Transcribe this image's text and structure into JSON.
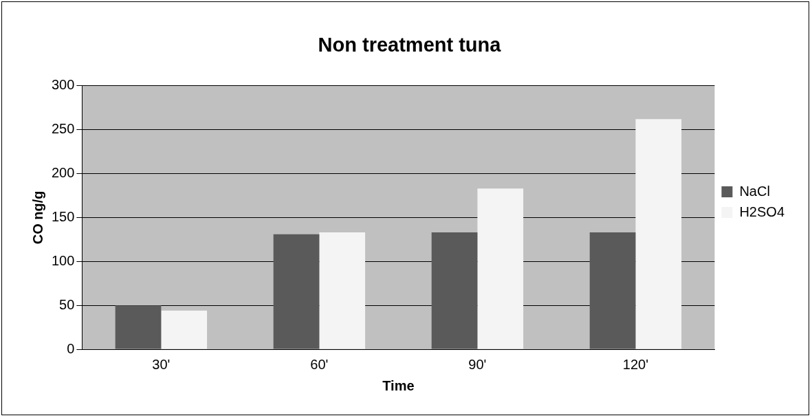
{
  "chart_data": {
    "type": "bar",
    "title": "Non treatment tuna",
    "xlabel": "Time",
    "ylabel": "CO ng/g",
    "categories": [
      "30'",
      "60'",
      "90'",
      "120'"
    ],
    "series": [
      {
        "name": "NaCl",
        "color": "#5a5a5a",
        "values": [
          50,
          131,
          133,
          133
        ]
      },
      {
        "name": "H2SO4",
        "color": "#f4f4f4",
        "values": [
          44,
          133,
          183,
          262
        ]
      }
    ],
    "ylim": [
      0,
      300
    ],
    "yticks": [
      0,
      50,
      100,
      150,
      200,
      250,
      300
    ],
    "grid": "y",
    "legend": "right"
  }
}
